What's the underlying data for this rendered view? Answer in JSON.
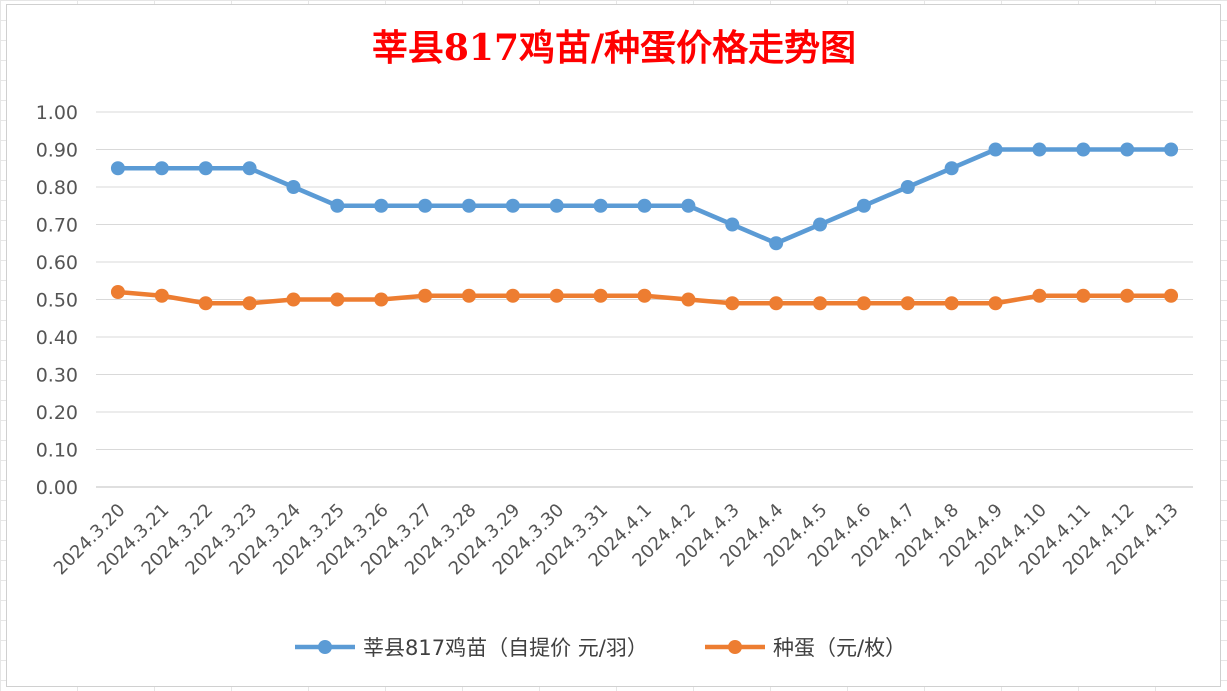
{
  "chart_data": {
    "type": "line",
    "title": "莘县817鸡苗/种蛋价格走势图",
    "categories": [
      "2024.3.20",
      "2024.3.21",
      "2024.3.22",
      "2024.3.23",
      "2024.3.24",
      "2024.3.25",
      "2024.3.26",
      "2024.3.27",
      "2024.3.28",
      "2024.3.29",
      "2024.3.30",
      "2024.3.31",
      "2024.4.1",
      "2024.4.2",
      "2024.4.3",
      "2024.4.4",
      "2024.4.5",
      "2024.4.6",
      "2024.4.7",
      "2024.4.8",
      "2024.4.9",
      "2024.4.10",
      "2024.4.11",
      "2024.4.12",
      "2024.4.13"
    ],
    "series": [
      {
        "name": "莘县817鸡苗（自提价 元/羽）",
        "color": "#5b9bd5",
        "values": [
          0.85,
          0.85,
          0.85,
          0.85,
          0.8,
          0.75,
          0.75,
          0.75,
          0.75,
          0.75,
          0.75,
          0.75,
          0.75,
          0.75,
          0.7,
          0.65,
          0.7,
          0.75,
          0.8,
          0.85,
          0.9,
          0.9,
          0.9,
          0.9,
          0.9
        ]
      },
      {
        "name": "种蛋（元/枚）",
        "color": "#ed7d31",
        "values": [
          0.52,
          0.51,
          0.49,
          0.49,
          0.5,
          0.5,
          0.5,
          0.51,
          0.51,
          0.51,
          0.51,
          0.51,
          0.51,
          0.5,
          0.49,
          0.49,
          0.49,
          0.49,
          0.49,
          0.49,
          0.49,
          0.51,
          0.51,
          0.51,
          0.51
        ]
      }
    ],
    "yticks": [
      "0.00",
      "0.10",
      "0.20",
      "0.30",
      "0.40",
      "0.50",
      "0.60",
      "0.70",
      "0.80",
      "0.90",
      "1.00"
    ],
    "ylim": [
      0,
      1.0
    ],
    "grid": true,
    "legend_position": "bottom"
  }
}
